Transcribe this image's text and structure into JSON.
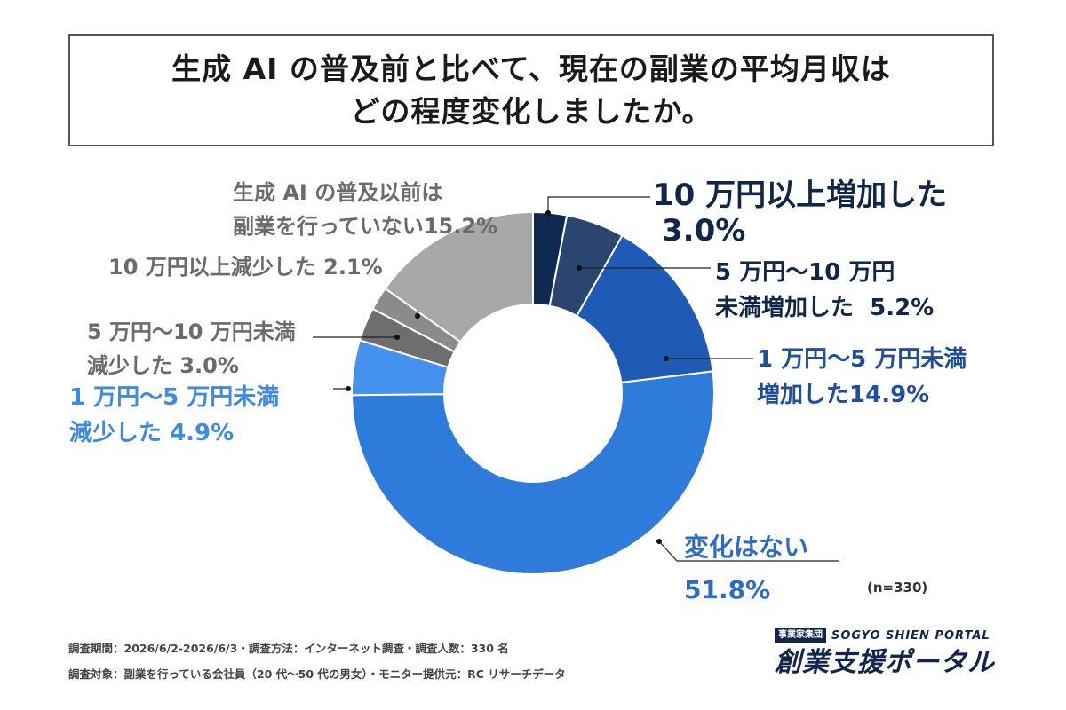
{
  "title": {
    "line1": "生成 AI の普及前と比べて、現在の副業の平均月収は",
    "line2": "どの程度変化しましたか。"
  },
  "chart_data": {
    "type": "pie",
    "variant": "donut",
    "start": "top",
    "direction": "clockwise",
    "slices": [
      {
        "label_line1": "10 万円以上増加した",
        "label_line2": "",
        "value": 3.0,
        "value_label": "3.0%",
        "color": "#0f2a52"
      },
      {
        "label_line1": "5 万円〜10 万円",
        "label_line2": "未満増加した",
        "value": 5.2,
        "value_label": "5.2%",
        "color": "#2a4570"
      },
      {
        "label_line1": "1 万円〜5 万円未満",
        "label_line2": "増加した",
        "value": 14.9,
        "value_label": "14.9%",
        "color": "#1f5bb5"
      },
      {
        "label_line1": "変化はない",
        "label_line2": "",
        "value": 51.8,
        "value_label": "51.8%",
        "color": "#2f7bdb"
      },
      {
        "label_line1": "1 万円〜5 万円未満",
        "label_line2": "減少した",
        "value": 4.9,
        "value_label": "4.9%",
        "color": "#4492ee"
      },
      {
        "label_line1": "5 万円〜10 万円未満",
        "label_line2": "減少した",
        "value": 3.0,
        "value_label": "3.0%",
        "color": "#6e6e70"
      },
      {
        "label_line1": "10 万円以上減少した",
        "label_line2": "",
        "value": 2.1,
        "value_label": "2.1%",
        "color": "#8b8b8d"
      },
      {
        "label_line1": "生成 AI の普及以前は",
        "label_line2": "副業を行っていない",
        "value": 15.2,
        "value_label": "15.2%",
        "color": "#a8a8aa"
      }
    ]
  },
  "note": "(n=330)",
  "footer": {
    "line1": "調査期間：2026/6/2-2026/6/3・調査方法：インターネット調査・調査人数：330 名",
    "line2": "調査対象：副業を行っている会社員（20 代〜50 代の男女）・モニター提供元：RC リサーチデータ"
  },
  "brand": {
    "badge": "事業家集団",
    "english": "SOGYO SHIEN PORTAL",
    "japanese": "創業支援ポータル"
  }
}
